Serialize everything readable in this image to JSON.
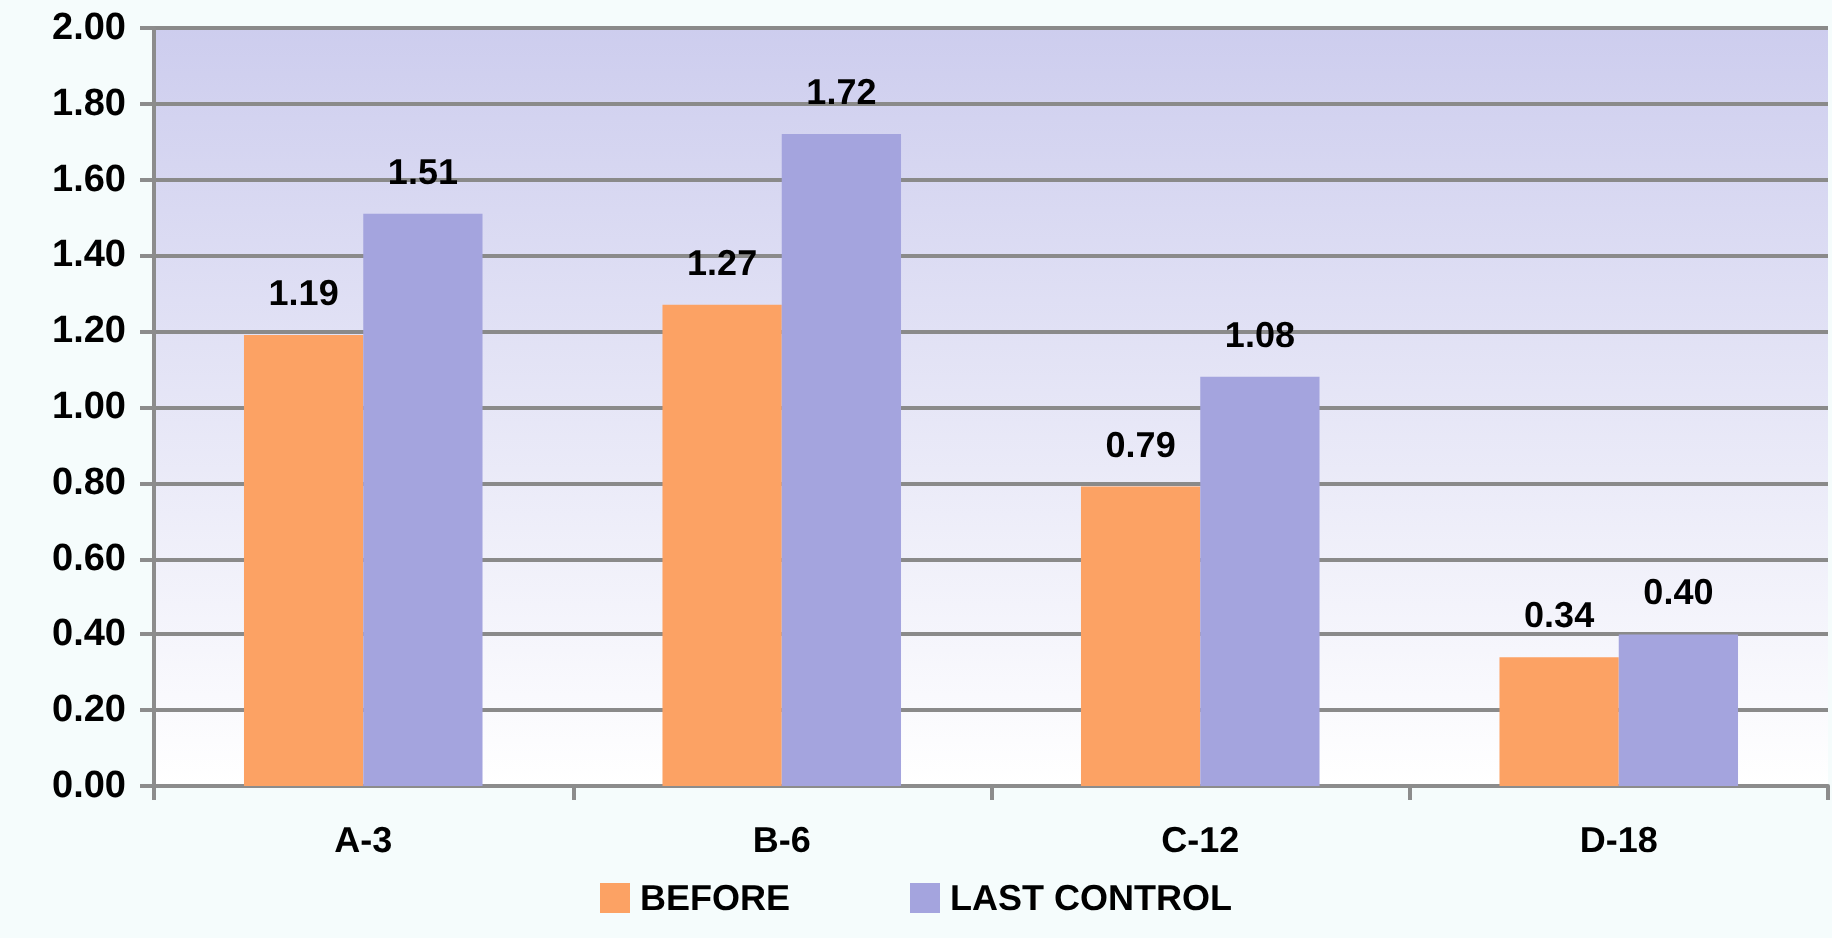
{
  "chart_data": {
    "type": "bar",
    "categories": [
      "A-3",
      "B-6",
      "C-12",
      "D-18"
    ],
    "series": [
      {
        "name": "BEFORE",
        "color": "#fca264",
        "values": [
          1.19,
          1.27,
          0.79,
          0.34
        ],
        "value_labels": [
          "1.19",
          "1.27",
          "0.79",
          "0.34"
        ]
      },
      {
        "name": "LAST CONTROL",
        "color": "#a4a4de",
        "values": [
          1.51,
          1.72,
          1.08,
          0.4
        ],
        "value_labels": [
          "1.51",
          "1.72",
          "1.08",
          "0.40"
        ]
      }
    ],
    "ylim": [
      0,
      2
    ],
    "yticks": [
      {
        "value": 0,
        "label": "0.00"
      },
      {
        "value": 0.2,
        "label": "0.20"
      },
      {
        "value": 0.4,
        "label": "0.40"
      },
      {
        "value": 0.6,
        "label": "0.60"
      },
      {
        "value": 0.8,
        "label": "0.80"
      },
      {
        "value": 1,
        "label": "1.00"
      },
      {
        "value": 1.2,
        "label": "1.20"
      },
      {
        "value": 1.4,
        "label": "1.40"
      },
      {
        "value": 1.6,
        "label": "1.60"
      },
      {
        "value": 1.8,
        "label": "1.80"
      },
      {
        "value": 2,
        "label": "2.00"
      }
    ],
    "grid": "y",
    "legend": "bottom"
  }
}
